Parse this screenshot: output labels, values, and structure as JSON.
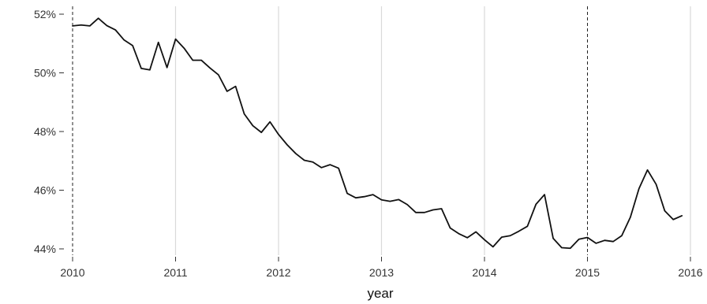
{
  "chart_data": {
    "type": "line",
    "title": "",
    "xlabel": "year",
    "ylabel": "",
    "xlim": [
      2010,
      2016
    ],
    "ylim": [
      44,
      52
    ],
    "x_ticks": [
      2010,
      2011,
      2012,
      2013,
      2014,
      2015,
      2016
    ],
    "x_tick_labels": [
      "2010",
      "2011",
      "2012",
      "2013",
      "2014",
      "2015",
      "2016"
    ],
    "y_ticks": [
      44,
      46,
      48,
      50,
      52
    ],
    "y_tick_labels": [
      "44%",
      "46%",
      "48%",
      "50%",
      "52%"
    ],
    "grid": "vertical major lines",
    "grid_color": "#d9d9d9",
    "reference_lines_x": [
      2010,
      2015
    ],
    "line_color": "#111111",
    "series": [
      {
        "x": [
          2010.0,
          2010.083,
          2010.167,
          2010.25,
          2010.333,
          2010.417,
          2010.5,
          2010.583,
          2010.667,
          2010.75,
          2010.833,
          2010.917,
          2011.0,
          2011.083,
          2011.167,
          2011.25,
          2011.333,
          2011.417,
          2011.5,
          2011.583,
          2011.667,
          2011.75,
          2011.833,
          2011.917,
          2012.0,
          2012.083,
          2012.167,
          2012.25,
          2012.333,
          2012.417,
          2012.5,
          2012.583,
          2012.667,
          2012.75,
          2012.833,
          2012.917,
          2013.0,
          2013.083,
          2013.167,
          2013.25,
          2013.333,
          2013.417,
          2013.5,
          2013.583,
          2013.667,
          2013.75,
          2013.833,
          2013.917,
          2014.0,
          2014.083,
          2014.167,
          2014.25,
          2014.333,
          2014.417,
          2014.5,
          2014.583,
          2014.667,
          2014.75,
          2014.833,
          2014.917,
          2015.0,
          2015.083,
          2015.167,
          2015.25,
          2015.333,
          2015.417,
          2015.5,
          2015.583,
          2015.667,
          2015.75,
          2015.833,
          2015.917
        ],
        "y": [
          51.6,
          51.63,
          51.6,
          51.86,
          51.61,
          51.46,
          51.12,
          50.93,
          50.15,
          50.1,
          51.04,
          50.18,
          51.15,
          50.84,
          50.43,
          50.43,
          50.17,
          49.93,
          49.37,
          49.54,
          48.6,
          48.2,
          47.97,
          48.33,
          47.9,
          47.55,
          47.25,
          47.02,
          46.96,
          46.77,
          46.87,
          46.75,
          45.89,
          45.74,
          45.78,
          45.85,
          45.67,
          45.62,
          45.68,
          45.51,
          45.24,
          45.24,
          45.33,
          45.37,
          44.71,
          44.52,
          44.38,
          44.58,
          44.31,
          44.07,
          44.4,
          44.45,
          44.6,
          44.77,
          45.52,
          45.85,
          44.36,
          44.04,
          44.02,
          44.33,
          44.39,
          44.19,
          44.29,
          44.25,
          44.45,
          45.08,
          46.05,
          46.69,
          46.2,
          45.3,
          45.0,
          45.13
        ]
      }
    ]
  }
}
